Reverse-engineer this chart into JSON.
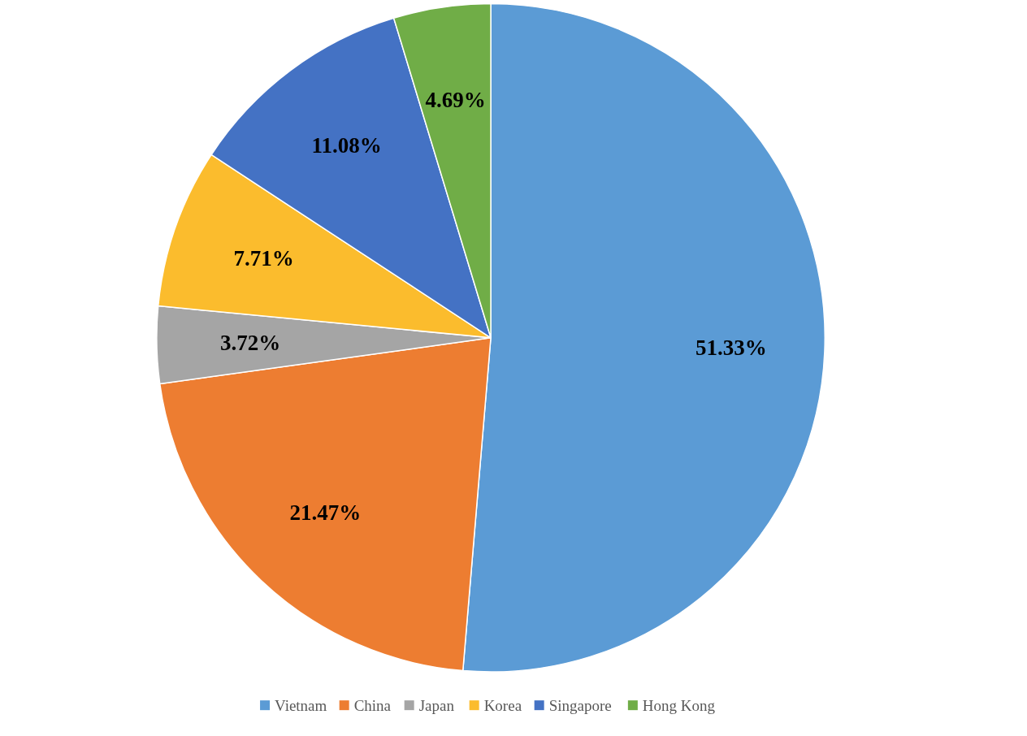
{
  "chart_data": {
    "type": "pie",
    "categories": [
      "Vietnam",
      "China",
      "Japan",
      "Korea",
      "Singapore",
      "Hong Kong"
    ],
    "values": [
      51.33,
      21.47,
      3.72,
      7.71,
      11.08,
      4.69
    ],
    "colors": [
      "#5b9bd5",
      "#ed7d31",
      "#a5a5a5",
      "#fbbc2d",
      "#4472c4",
      "#70ad47"
    ],
    "value_labels": [
      "51.33%",
      "21.47%",
      "3.72%",
      "7.71%",
      "11.08%",
      "4.69%"
    ],
    "legend": "bottom"
  }
}
